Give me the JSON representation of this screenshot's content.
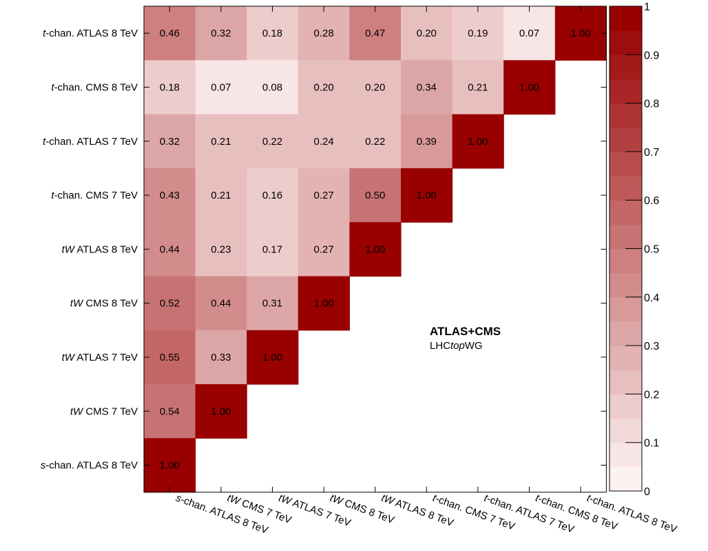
{
  "chart_data": {
    "type": "heatmap",
    "row_labels": [
      {
        "italic": "t",
        "rest": "-chan. ATLAS 8 TeV"
      },
      {
        "italic": "t",
        "rest": "-chan. CMS 8 TeV"
      },
      {
        "italic": "t",
        "rest": "-chan. ATLAS 7 TeV"
      },
      {
        "italic": "t",
        "rest": "-chan. CMS 7 TeV"
      },
      {
        "italic": "tW",
        "rest": " ATLAS 8 TeV"
      },
      {
        "italic": "tW",
        "rest": " CMS 8 TeV"
      },
      {
        "italic": "tW",
        "rest": " ATLAS 7 TeV"
      },
      {
        "italic": "tW",
        "rest": " CMS 7 TeV"
      },
      {
        "italic": "s",
        "rest": "-chan. ATLAS 8 TeV"
      }
    ],
    "col_labels": [
      {
        "italic": "s",
        "rest": "-chan. ATLAS 8 TeV"
      },
      {
        "italic": "tW",
        "rest": " CMS 7 TeV"
      },
      {
        "italic": "tW",
        "rest": " ATLAS 7 TeV"
      },
      {
        "italic": "tW",
        "rest": " CMS 8 TeV"
      },
      {
        "italic": "tW",
        "rest": " ATLAS 8 TeV"
      },
      {
        "italic": "t",
        "rest": "-chan. CMS 7 TeV"
      },
      {
        "italic": "t",
        "rest": "-chan. ATLAS 7 TeV"
      },
      {
        "italic": "t",
        "rest": "-chan. CMS 8 TeV"
      },
      {
        "italic": "t",
        "rest": "-chan. ATLAS 8 TeV"
      }
    ],
    "cells": [
      [
        0.46,
        0.32,
        0.18,
        0.28,
        0.47,
        0.2,
        0.19,
        0.07,
        1.0
      ],
      [
        0.18,
        0.07,
        0.08,
        0.2,
        0.2,
        0.34,
        0.21,
        1.0
      ],
      [
        0.32,
        0.21,
        0.22,
        0.24,
        0.22,
        0.39,
        1.0
      ],
      [
        0.43,
        0.21,
        0.16,
        0.27,
        0.5,
        1.0
      ],
      [
        0.44,
        0.23,
        0.17,
        0.27,
        1.0
      ],
      [
        0.52,
        0.44,
        0.31,
        1.0
      ],
      [
        0.55,
        0.33,
        1.0
      ],
      [
        0.54,
        1.0
      ],
      [
        1.0
      ]
    ],
    "colorbar": {
      "range": [
        0,
        1
      ],
      "tick_labels": [
        "0",
        "0.1",
        "0.2",
        "0.3",
        "0.4",
        "0.5",
        "0.6",
        "0.7",
        "0.8",
        "0.9",
        "1"
      ],
      "color_low": "#fdf2f2",
      "color_high": "#990000",
      "steps": 20
    },
    "annotation": {
      "title": "ATLAS+CMS",
      "subtitle_prefix": "LHC",
      "subtitle_italic": "top",
      "subtitle_suffix": "WG"
    },
    "grid": false
  }
}
